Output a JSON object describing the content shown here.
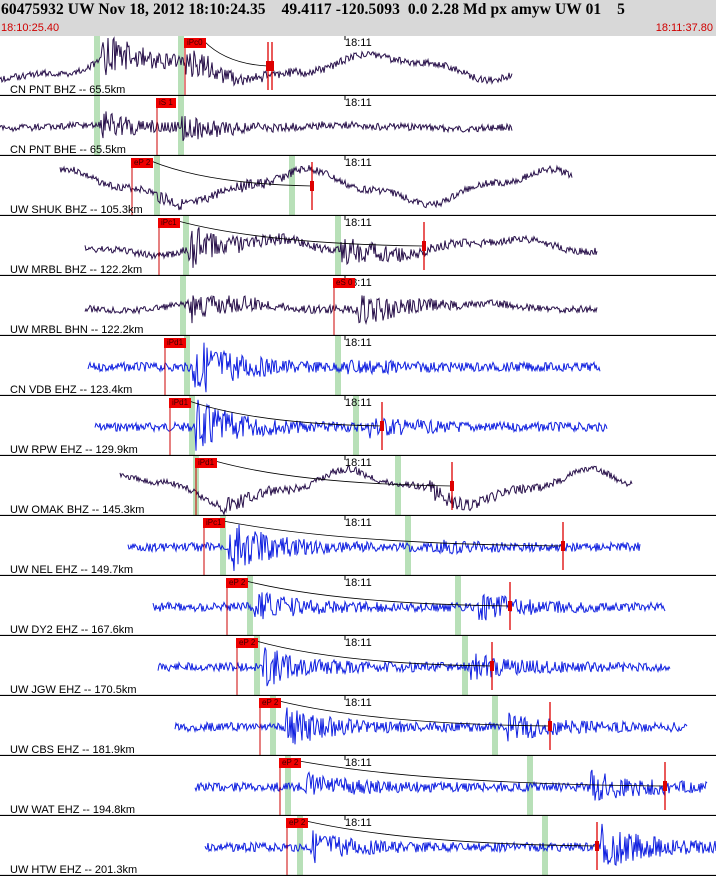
{
  "header": {
    "title": "60475932 UW Nov 18, 2012 18:10:24.35    49.4117 -120.5093  0.0 2.28 Md px amyw UW 01    5",
    "time_start": "18:10:25.40",
    "time_end": "18:11:37.80"
  },
  "colors": {
    "header_bg": "#d8d8d8",
    "trace_dark": "#28104a",
    "trace_blue": "#1020e0",
    "pick_red": "#ee0000",
    "window_green": "#b8e0b8",
    "timing_red": "#dd0000"
  },
  "traces": [
    {
      "station": "CN PNT BHZ -- 65.5km",
      "time_mark": "18:11",
      "pick": "iPc0",
      "color": "dark",
      "env": 0.55,
      "tail": 0.45,
      "lf": 0.75,
      "start": 0,
      "end": 512,
      "p": 100,
      "s": 183,
      "g1": 97,
      "g2": 181,
      "r1": 268,
      "r2": 272,
      "box": 184,
      "curve": 1,
      "ph": 1
    },
    {
      "station": "CN PNT BHE -- 65.5km",
      "time_mark": "18:11",
      "pick": "iS 1",
      "color": "dark",
      "env": 0.3,
      "tail": 0.35,
      "lf": 0.12,
      "start": 0,
      "end": 512,
      "p": 100,
      "s": 181,
      "g1": 97,
      "g2": 181,
      "r1": 0,
      "r2": 0,
      "box": 156,
      "curve": 0,
      "ph": 2
    },
    {
      "station": "UW SHUK BHZ -- 105.3km",
      "time_mark": "18:11",
      "pick": "eP 2",
      "color": "dark",
      "env": 0.12,
      "tail": 0.1,
      "lf": 1.0,
      "start": 60,
      "end": 572,
      "p": 157,
      "s": 240,
      "g1": 157,
      "g2": 292,
      "r1": 312,
      "r2": 0,
      "box": 131,
      "curve": 1,
      "ph": 3
    },
    {
      "station": "UW MRBL BHZ -- 122.2km",
      "time_mark": "18:11",
      "pick": "iPc1",
      "color": "dark",
      "env": 0.55,
      "tail": 0.5,
      "lf": 0.5,
      "start": 85,
      "end": 597,
      "p": 187,
      "s": 340,
      "g1": 186,
      "g2": 338,
      "r1": 424,
      "r2": 0,
      "box": 158,
      "curve": 1,
      "ph": 4
    },
    {
      "station": "UW MRBL BHN -- 122.2km",
      "time_mark": "18:11",
      "pick": "eS 0",
      "color": "dark",
      "env": 0.45,
      "tail": 0.5,
      "lf": 0.22,
      "start": 85,
      "end": 597,
      "p": 187,
      "s": 358,
      "g1": 183,
      "g2": 0,
      "r1": 0,
      "r2": 0,
      "box": 333,
      "curve": 0,
      "ph": 5
    },
    {
      "station": "CN VDB EHZ -- 123.4km",
      "time_mark": "18:11",
      "pick": "iPd1",
      "color": "blue",
      "env": 0.75,
      "tail": 0.2,
      "lf": 0.0,
      "start": 88,
      "end": 600,
      "p": 192,
      "s": 345,
      "g1": 187,
      "g2": 338,
      "r1": 0,
      "r2": 0,
      "box": 164,
      "curve": 0,
      "ph": 6
    },
    {
      "station": "UW RPW EHZ -- 129.9km",
      "time_mark": "18:11",
      "pick": "iPd1",
      "color": "blue",
      "env": 0.65,
      "tail": 0.3,
      "lf": 0.0,
      "start": 95,
      "end": 607,
      "p": 195,
      "s": 368,
      "g1": 192,
      "g2": 356,
      "r1": 382,
      "r2": 0,
      "box": 169,
      "curve": 1,
      "ph": 7
    },
    {
      "station": "UW OMAK BHZ -- 145.3km",
      "time_mark": "18:11",
      "pick": "iPd1",
      "color": "dark",
      "env": 0.2,
      "tail": 0.25,
      "lf": 1.0,
      "start": 120,
      "end": 632,
      "p": 220,
      "s": 425,
      "g1": 196,
      "g2": 398,
      "r1": 452,
      "r2": 0,
      "box": 195,
      "curve": 1,
      "ph": 8
    },
    {
      "station": "UW NEL EHZ -- 149.7km",
      "time_mark": "18:11",
      "pick": "iPc1",
      "color": "blue",
      "env": 0.6,
      "tail": 0.12,
      "lf": 0.0,
      "start": 128,
      "end": 640,
      "p": 228,
      "s": 438,
      "g1": 223,
      "g2": 408,
      "r1": 563,
      "r2": 0,
      "box": 203,
      "curve": 1,
      "ph": 9
    },
    {
      "station": "UW DY2 EHZ -- 167.6km",
      "time_mark": "18:11",
      "pick": "eP 2",
      "color": "blue",
      "env": 0.35,
      "tail": 0.45,
      "lf": 0.0,
      "start": 153,
      "end": 665,
      "p": 253,
      "s": 478,
      "g1": 250,
      "g2": 458,
      "r1": 510,
      "r2": 0,
      "box": 226,
      "curve": 1,
      "ph": 10
    },
    {
      "station": "UW JGW EHZ -- 170.5km",
      "time_mark": "18:11",
      "pick": "eP 2",
      "color": "blue",
      "env": 0.45,
      "tail": 0.4,
      "lf": 0.0,
      "start": 158,
      "end": 670,
      "p": 262,
      "s": 470,
      "g1": 257,
      "g2": 465,
      "r1": 492,
      "r2": 0,
      "box": 236,
      "curve": 1,
      "ph": 11
    },
    {
      "station": "UW CBS EHZ -- 181.9km",
      "time_mark": "18:11",
      "pick": "eP 2",
      "color": "blue",
      "env": 0.45,
      "tail": 0.45,
      "lf": 0.0,
      "start": 175,
      "end": 687,
      "p": 285,
      "s": 505,
      "g1": 273,
      "g2": 495,
      "r1": 550,
      "r2": 0,
      "box": 259,
      "curve": 1,
      "ph": 12
    },
    {
      "station": "UW WAT EHZ -- 194.8km",
      "time_mark": "18:11",
      "pick": "eP 2",
      "color": "blue",
      "env": 0.3,
      "tail": 0.55,
      "lf": 0.0,
      "start": 195,
      "end": 707,
      "p": 305,
      "s": 590,
      "g1": 288,
      "g2": 530,
      "r1": 665,
      "r2": 0,
      "box": 279,
      "curve": 1,
      "ph": 13
    },
    {
      "station": "UW HTW EHZ -- 201.3km",
      "time_mark": "18:11",
      "pick": "eP 2",
      "color": "blue",
      "env": 0.35,
      "tail": 0.75,
      "lf": 0.0,
      "start": 205,
      "end": 716,
      "p": 310,
      "s": 600,
      "g1": 300,
      "g2": 545,
      "r1": 597,
      "r2": 0,
      "box": 286,
      "curve": 1,
      "ph": 14
    }
  ]
}
